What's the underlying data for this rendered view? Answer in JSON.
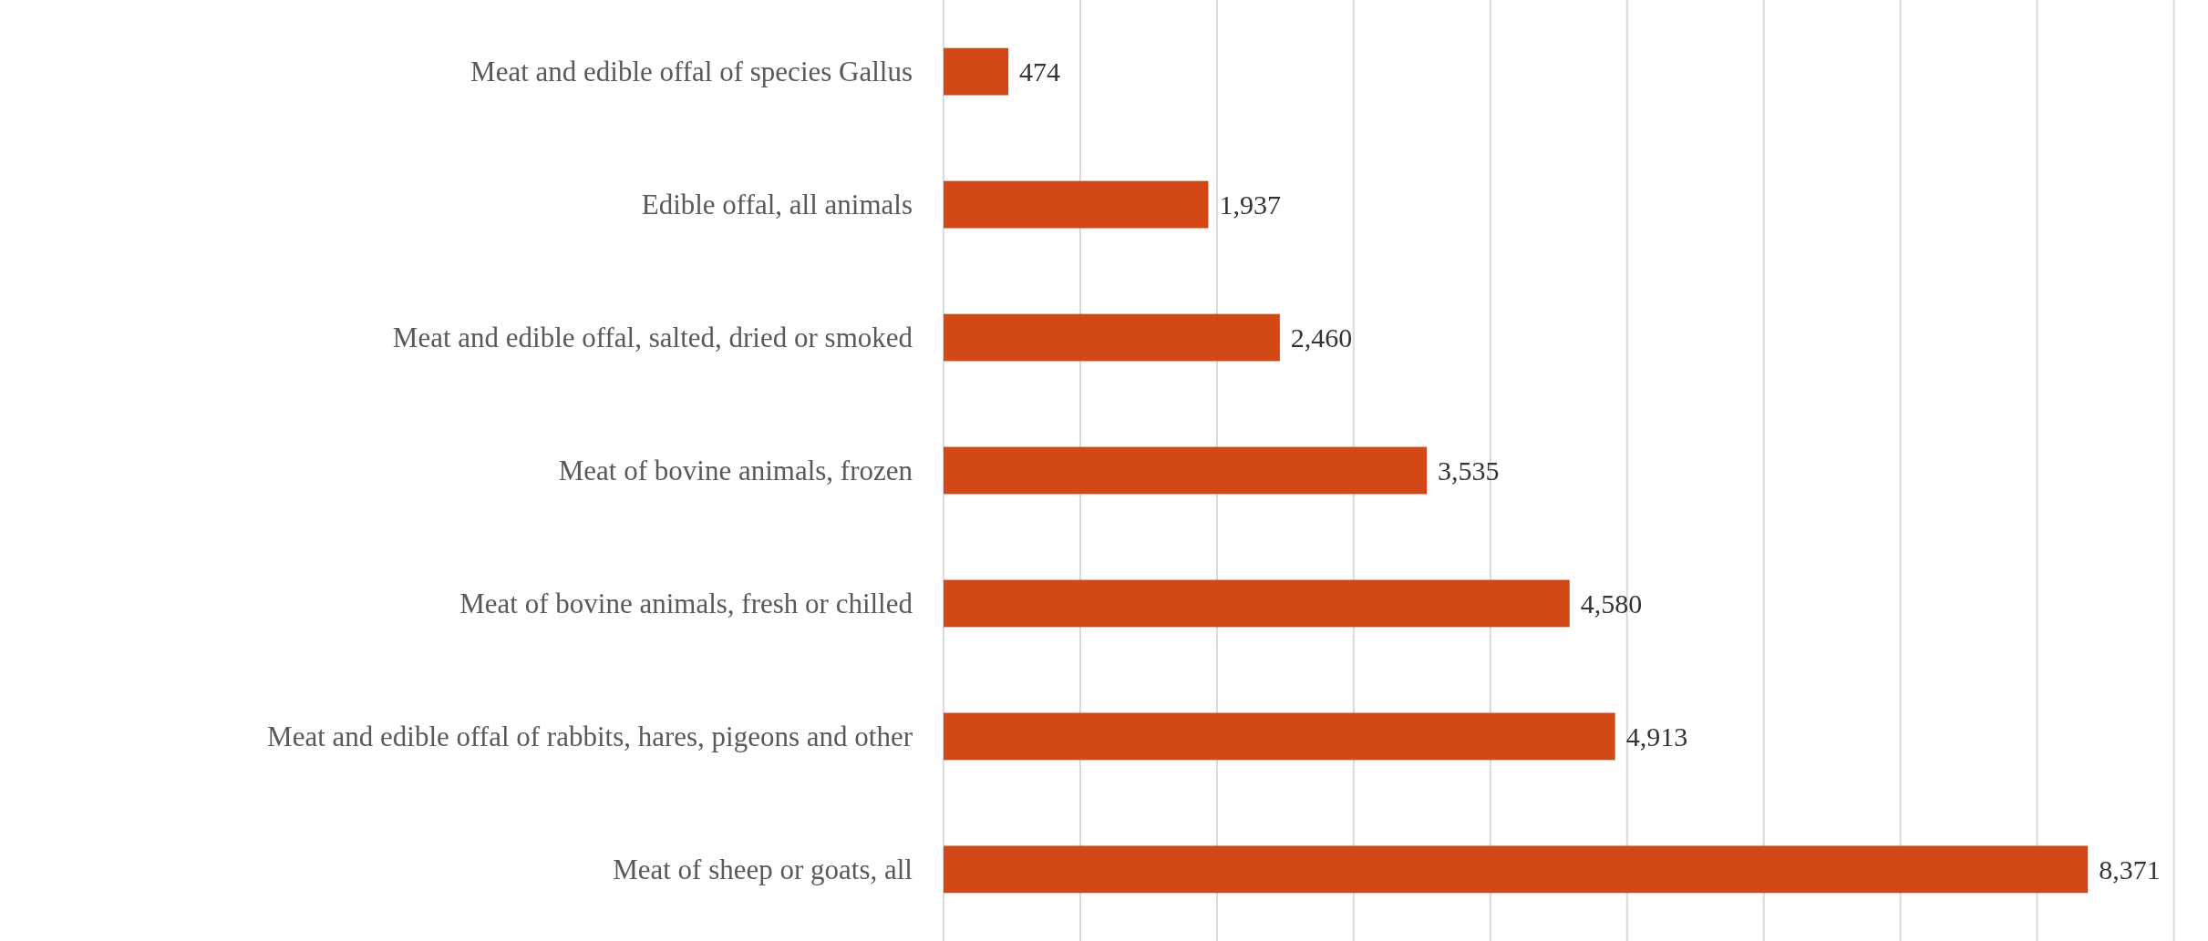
{
  "chart_data": {
    "type": "bar",
    "orientation": "horizontal",
    "categories": [
      "Meat and edible offal of species Gallus",
      "Edible offal, all animals",
      "Meat and edible offal, salted, dried or smoked",
      "Meat of bovine animals, frozen",
      "Meat of bovine animals, fresh or chilled",
      "Meat and edible offal of rabbits, hares, pigeons and other",
      "Meat of sheep or goats, all"
    ],
    "values": [
      474,
      1937,
      2460,
      3535,
      4580,
      4913,
      8371
    ],
    "value_labels": [
      "474",
      "1,937",
      "2,460",
      "3,535",
      "4,580",
      "4,913",
      "8,371"
    ],
    "color": "#d24817",
    "xlim": [
      0,
      9250
    ],
    "xticks": [
      {
        "value": 0,
        "label": null
      },
      {
        "value": 1000,
        "label": null
      },
      {
        "value": 2000,
        "label": null
      },
      {
        "value": 3000,
        "label": null
      },
      {
        "value": 4000,
        "label": null
      },
      {
        "value": 5000,
        "label": null
      },
      {
        "value": 6000,
        "label": null
      },
      {
        "value": 7000,
        "label": null
      },
      {
        "value": 8000,
        "label": null
      },
      {
        "value": 9000,
        "label": null
      }
    ],
    "grid": "x",
    "tick_labels": "y"
  }
}
